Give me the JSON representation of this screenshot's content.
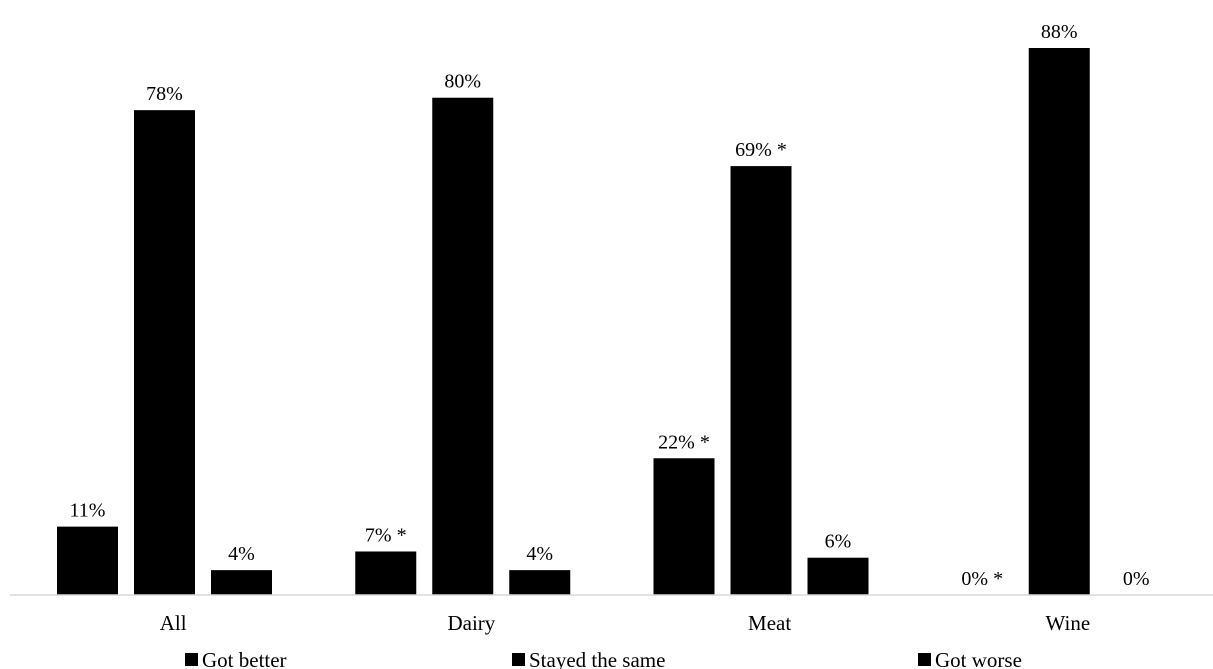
{
  "chart_data": {
    "type": "bar",
    "title": "",
    "xlabel": "",
    "ylabel": "",
    "categories": [
      "All",
      "Dairy",
      "Meat",
      "Wine"
    ],
    "series": [
      {
        "name": "Got better",
        "values": [
          11,
          7,
          22,
          0
        ],
        "labels": [
          "11%",
          "7% *",
          "22% *",
          "0% *"
        ]
      },
      {
        "name": "Stayed the same",
        "values": [
          78,
          80,
          69,
          88
        ],
        "labels": [
          "78%",
          "80%",
          "69% *",
          "88%"
        ]
      },
      {
        "name": "Got worse",
        "values": [
          4,
          4,
          6,
          0
        ],
        "labels": [
          "4%",
          "4%",
          "6%",
          "0%"
        ]
      }
    ],
    "ylim": [
      0,
      88
    ],
    "grid": false,
    "legend_position": "bottom",
    "colors": [
      "#000000",
      "#000000",
      "#000000"
    ]
  }
}
